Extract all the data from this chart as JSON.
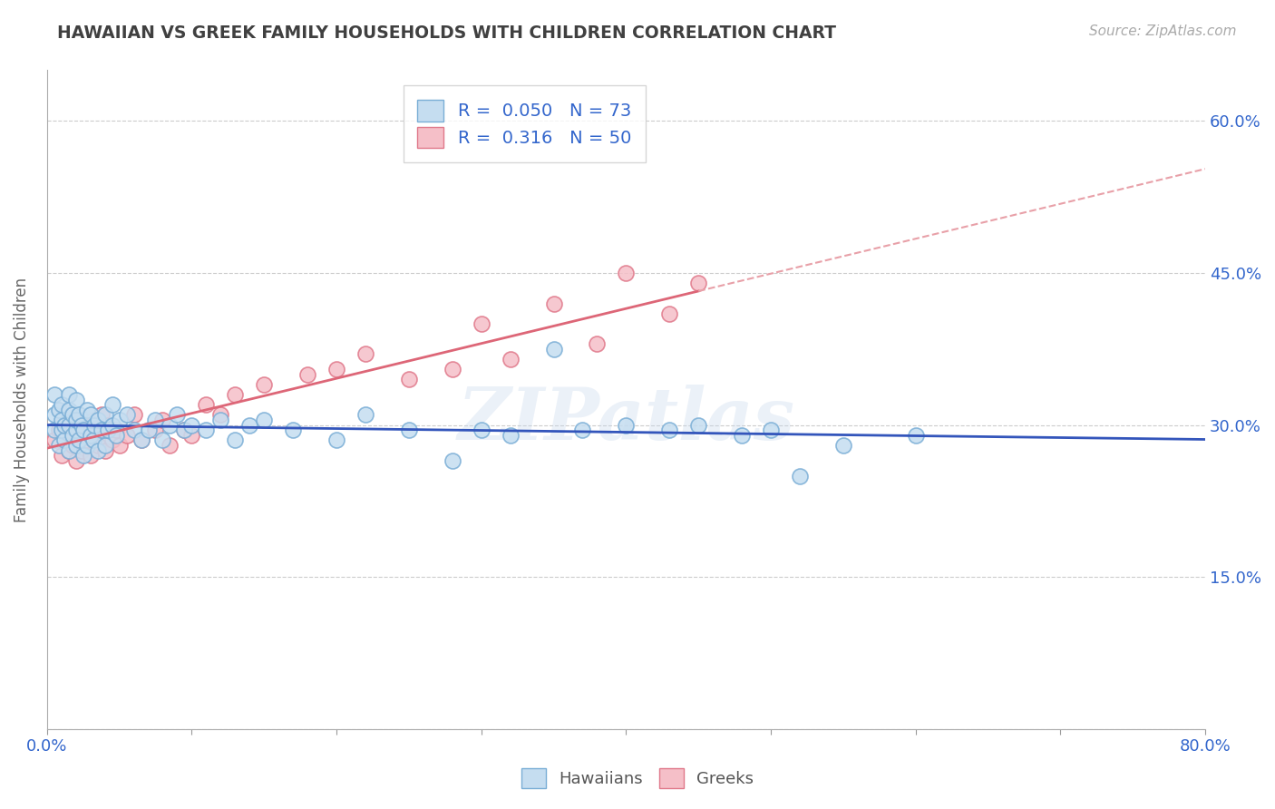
{
  "title": "HAWAIIAN VS GREEK FAMILY HOUSEHOLDS WITH CHILDREN CORRELATION CHART",
  "source": "Source: ZipAtlas.com",
  "ylabel": "Family Households with Children",
  "xlim": [
    0.0,
    0.8
  ],
  "ylim": [
    0.0,
    0.65
  ],
  "xticks": [
    0.0,
    0.1,
    0.2,
    0.3,
    0.4,
    0.5,
    0.6,
    0.7,
    0.8
  ],
  "yticks": [
    0.0,
    0.15,
    0.3,
    0.45,
    0.6
  ],
  "background_color": "#ffffff",
  "watermark": "ZIPatlas",
  "hawaiians": {
    "color": "#7aaed6",
    "fill": "#c5ddf0",
    "R": 0.05,
    "N": 73,
    "x": [
      0.005,
      0.005,
      0.005,
      0.008,
      0.008,
      0.01,
      0.01,
      0.01,
      0.012,
      0.012,
      0.015,
      0.015,
      0.015,
      0.015,
      0.018,
      0.018,
      0.02,
      0.02,
      0.02,
      0.02,
      0.022,
      0.022,
      0.024,
      0.025,
      0.025,
      0.028,
      0.028,
      0.03,
      0.03,
      0.032,
      0.033,
      0.035,
      0.035,
      0.038,
      0.04,
      0.04,
      0.042,
      0.045,
      0.045,
      0.048,
      0.05,
      0.055,
      0.06,
      0.065,
      0.07,
      0.075,
      0.08,
      0.085,
      0.09,
      0.095,
      0.1,
      0.11,
      0.12,
      0.13,
      0.14,
      0.15,
      0.17,
      0.2,
      0.22,
      0.25,
      0.28,
      0.3,
      0.32,
      0.35,
      0.37,
      0.4,
      0.43,
      0.45,
      0.48,
      0.5,
      0.52,
      0.55,
      0.6
    ],
    "y": [
      0.295,
      0.31,
      0.33,
      0.28,
      0.315,
      0.295,
      0.305,
      0.32,
      0.285,
      0.3,
      0.275,
      0.3,
      0.315,
      0.33,
      0.29,
      0.31,
      0.28,
      0.295,
      0.305,
      0.325,
      0.285,
      0.31,
      0.3,
      0.27,
      0.295,
      0.28,
      0.315,
      0.29,
      0.31,
      0.285,
      0.3,
      0.275,
      0.305,
      0.295,
      0.28,
      0.31,
      0.295,
      0.3,
      0.32,
      0.29,
      0.305,
      0.31,
      0.295,
      0.285,
      0.295,
      0.305,
      0.285,
      0.3,
      0.31,
      0.295,
      0.3,
      0.295,
      0.305,
      0.285,
      0.3,
      0.305,
      0.295,
      0.285,
      0.31,
      0.295,
      0.265,
      0.295,
      0.29,
      0.375,
      0.295,
      0.3,
      0.295,
      0.3,
      0.29,
      0.295,
      0.25,
      0.28,
      0.29
    ]
  },
  "greeks": {
    "color": "#e0788a",
    "fill": "#f5bfc8",
    "R": 0.316,
    "N": 50,
    "x": [
      0.005,
      0.008,
      0.01,
      0.01,
      0.012,
      0.015,
      0.015,
      0.018,
      0.018,
      0.02,
      0.022,
      0.022,
      0.024,
      0.025,
      0.025,
      0.028,
      0.03,
      0.03,
      0.032,
      0.035,
      0.038,
      0.04,
      0.042,
      0.045,
      0.048,
      0.05,
      0.055,
      0.06,
      0.065,
      0.075,
      0.08,
      0.085,
      0.095,
      0.1,
      0.11,
      0.12,
      0.13,
      0.15,
      0.18,
      0.2,
      0.22,
      0.25,
      0.28,
      0.3,
      0.32,
      0.35,
      0.38,
      0.4,
      0.43,
      0.45
    ],
    "y": [
      0.285,
      0.295,
      0.27,
      0.3,
      0.285,
      0.275,
      0.295,
      0.28,
      0.305,
      0.265,
      0.285,
      0.295,
      0.275,
      0.29,
      0.3,
      0.285,
      0.27,
      0.295,
      0.305,
      0.28,
      0.31,
      0.275,
      0.3,
      0.285,
      0.295,
      0.28,
      0.29,
      0.31,
      0.285,
      0.295,
      0.305,
      0.28,
      0.295,
      0.29,
      0.32,
      0.31,
      0.33,
      0.34,
      0.35,
      0.355,
      0.37,
      0.345,
      0.355,
      0.4,
      0.365,
      0.42,
      0.38,
      0.45,
      0.41,
      0.44
    ]
  },
  "r_color": "#3366cc",
  "title_color": "#404040",
  "tick_color": "#3366cc",
  "grid_color": "#cccccc",
  "trendline_hawaiian_color": "#3355bb",
  "trendline_greek_color": "#dd6677",
  "trendline_greek_dashed_color": "#e8a0a8"
}
